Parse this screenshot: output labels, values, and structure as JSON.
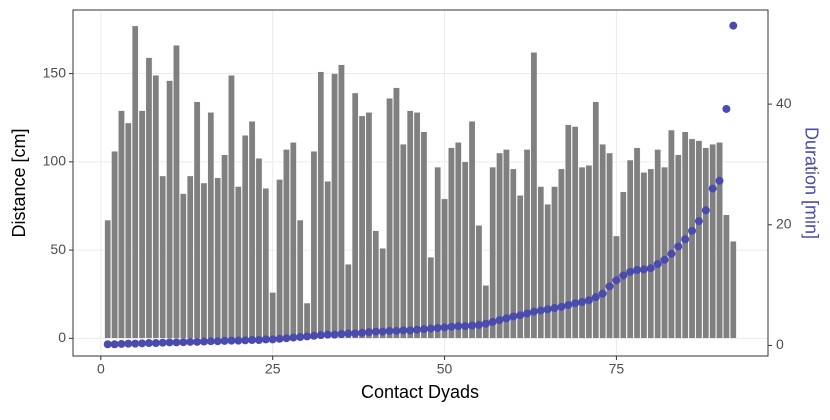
{
  "chart_data": {
    "type": "bar_scatter",
    "xlabel": "Contact Dyads",
    "ylabel": "Distance [cm]",
    "y2label": "Duration [min]",
    "x": [
      1,
      2,
      3,
      4,
      5,
      6,
      7,
      8,
      9,
      10,
      11,
      12,
      13,
      14,
      15,
      16,
      17,
      18,
      19,
      20,
      21,
      22,
      23,
      24,
      25,
      26,
      27,
      28,
      29,
      30,
      31,
      32,
      33,
      34,
      35,
      36,
      37,
      38,
      39,
      40,
      41,
      42,
      43,
      44,
      45,
      46,
      47,
      48,
      49,
      50,
      51,
      52,
      53,
      54,
      55,
      56,
      57,
      58,
      59,
      60,
      61,
      62,
      63,
      64,
      65,
      66,
      67,
      68,
      69,
      70,
      71,
      72,
      73,
      74,
      75,
      76,
      77,
      78,
      79,
      80,
      81,
      82,
      83,
      84,
      85,
      86,
      87,
      88,
      89,
      90,
      91,
      92
    ],
    "series": [
      {
        "name": "Distance",
        "kind": "bar",
        "color": "#808080",
        "values": [
          67,
          106,
          129,
          122,
          177,
          129,
          159,
          149,
          92,
          146,
          166,
          82,
          92,
          134,
          88,
          128,
          91,
          104,
          149,
          86,
          115,
          123,
          102,
          85,
          26,
          90,
          107,
          111,
          67,
          20,
          106,
          151,
          89,
          150,
          155,
          42,
          139,
          126,
          128,
          61,
          51,
          136,
          142,
          110,
          129,
          128,
          117,
          46,
          97,
          79,
          108,
          111,
          100,
          123,
          64,
          30,
          97,
          105,
          107,
          96,
          81,
          107,
          162,
          86,
          76,
          86,
          96,
          121,
          120,
          97,
          98,
          134,
          110,
          105,
          58,
          83,
          101,
          108,
          94,
          96,
          107,
          97,
          118,
          104,
          117,
          113,
          112,
          108,
          110,
          111,
          70,
          55
        ]
      },
      {
        "name": "Duration",
        "kind": "scatter",
        "axis": "y2",
        "color": "#4b4bad",
        "values": [
          0.2,
          0.2,
          0.25,
          0.3,
          0.3,
          0.35,
          0.4,
          0.4,
          0.45,
          0.5,
          0.5,
          0.55,
          0.6,
          0.6,
          0.65,
          0.7,
          0.7,
          0.75,
          0.8,
          0.8,
          0.85,
          0.9,
          0.9,
          1.0,
          1.0,
          1.1,
          1.2,
          1.3,
          1.4,
          1.5,
          1.6,
          1.7,
          1.8,
          1.8,
          1.9,
          2.0,
          2.0,
          2.1,
          2.2,
          2.3,
          2.3,
          2.4,
          2.4,
          2.5,
          2.5,
          2.6,
          2.7,
          2.8,
          2.9,
          3.0,
          3.1,
          3.2,
          3.2,
          3.3,
          3.4,
          3.6,
          3.9,
          4.2,
          4.5,
          4.8,
          5.0,
          5.3,
          5.6,
          5.8,
          6.0,
          6.2,
          6.4,
          6.7,
          7.0,
          7.2,
          7.5,
          8.0,
          8.6,
          9.8,
          10.8,
          11.6,
          12.2,
          12.5,
          12.6,
          12.8,
          13.5,
          14.2,
          15.2,
          16.4,
          17.6,
          19.0,
          20.6,
          22.4,
          26.0,
          27.3,
          39.2,
          53
        ]
      }
    ],
    "xlim": [
      -4.05,
      97.05
    ],
    "xticks": [
      0,
      25,
      50,
      75
    ],
    "ylim": [
      -10,
      186
    ],
    "yticks": [
      0,
      50,
      100,
      150
    ],
    "y2lim": [
      -1.75,
      55.6
    ],
    "y2ticks": [
      0,
      20,
      40
    ],
    "grid": true
  }
}
